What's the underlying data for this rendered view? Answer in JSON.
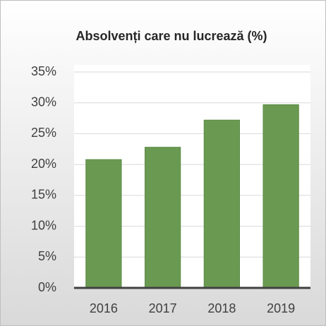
{
  "chart_data": {
    "type": "bar",
    "title": "Absolvenți care nu lucrează (%)",
    "categories": [
      "2016",
      "2017",
      "2018",
      "2019"
    ],
    "values": [
      20.8,
      22.8,
      27.2,
      29.7
    ],
    "color": "#6a9a52",
    "ylim": [
      0,
      35
    ],
    "yticks": [
      {
        "value": 0,
        "label": "0%"
      },
      {
        "value": 5,
        "label": "5%"
      },
      {
        "value": 10,
        "label": "10%"
      },
      {
        "value": 15,
        "label": "15%"
      },
      {
        "value": 20,
        "label": "20%"
      },
      {
        "value": 25,
        "label": "25%"
      },
      {
        "value": 30,
        "label": "30%"
      },
      {
        "value": 35,
        "label": "35%"
      }
    ],
    "grid": true
  }
}
